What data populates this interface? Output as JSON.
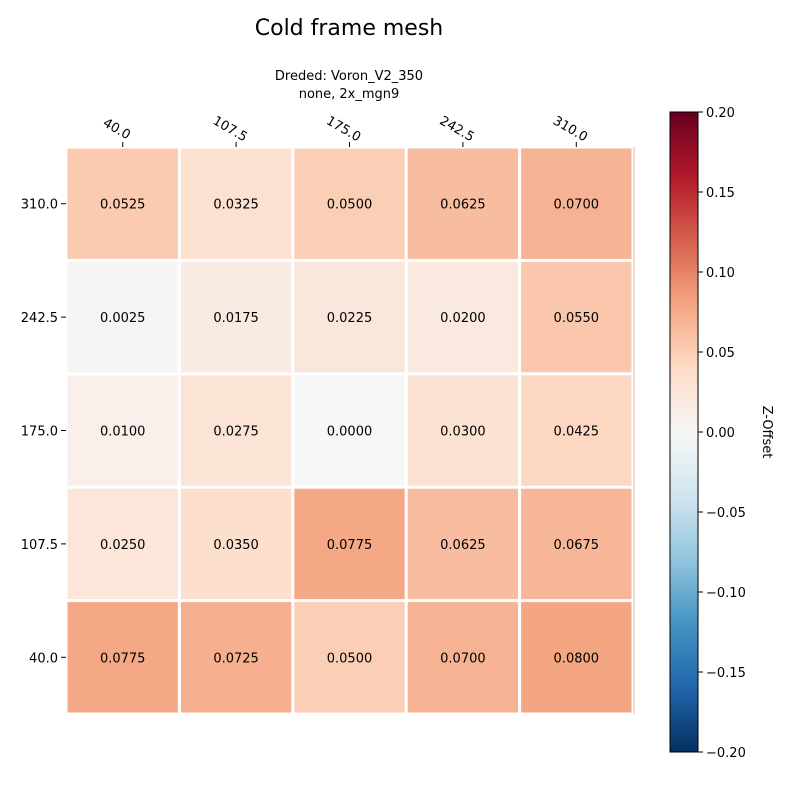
{
  "chart_data": {
    "type": "heatmap",
    "title": "Cold frame mesh",
    "subtitle_lines": [
      "Dreded: Voron_V2_350",
      "none, 2x_mgn9"
    ],
    "x_ticks": [
      "40.0",
      "107.5",
      "175.0",
      "242.5",
      "310.0"
    ],
    "y_ticks": [
      "310.0",
      "242.5",
      "175.0",
      "107.5",
      "40.0"
    ],
    "values": [
      [
        0.0525,
        0.0325,
        0.05,
        0.0625,
        0.07
      ],
      [
        0.0025,
        0.0175,
        0.0225,
        0.02,
        0.055
      ],
      [
        0.01,
        0.0275,
        0.0,
        0.03,
        0.0425
      ],
      [
        0.025,
        0.035,
        0.0775,
        0.0625,
        0.0675
      ],
      [
        0.0775,
        0.0725,
        0.05,
        0.07,
        0.08
      ]
    ],
    "value_labels": [
      [
        "0.0525",
        "0.0325",
        "0.0500",
        "0.0625",
        "0.0700"
      ],
      [
        "0.0025",
        "0.0175",
        "0.0225",
        "0.0200",
        "0.0550"
      ],
      [
        "0.0100",
        "0.0275",
        "0.0000",
        "0.0300",
        "0.0425"
      ],
      [
        "0.0250",
        "0.0350",
        "0.0775",
        "0.0625",
        "0.0675"
      ],
      [
        "0.0775",
        "0.0725",
        "0.0500",
        "0.0700",
        "0.0800"
      ]
    ],
    "colorbar": {
      "label": "Z-Offset",
      "range": [
        -0.2,
        0.2
      ],
      "ticks": [
        "0.20",
        "0.15",
        "0.10",
        "0.05",
        "0.00",
        "−0.05",
        "−0.10",
        "−0.15",
        "−0.20"
      ],
      "colormap": "RdBu_r",
      "colormap_stops": [
        "#053061",
        "#2166ac",
        "#4393c3",
        "#92c5de",
        "#d1e5f0",
        "#f7f7f7",
        "#fddbc7",
        "#f4a582",
        "#d6604d",
        "#b2182b",
        "#67001f"
      ]
    },
    "grid": false
  }
}
